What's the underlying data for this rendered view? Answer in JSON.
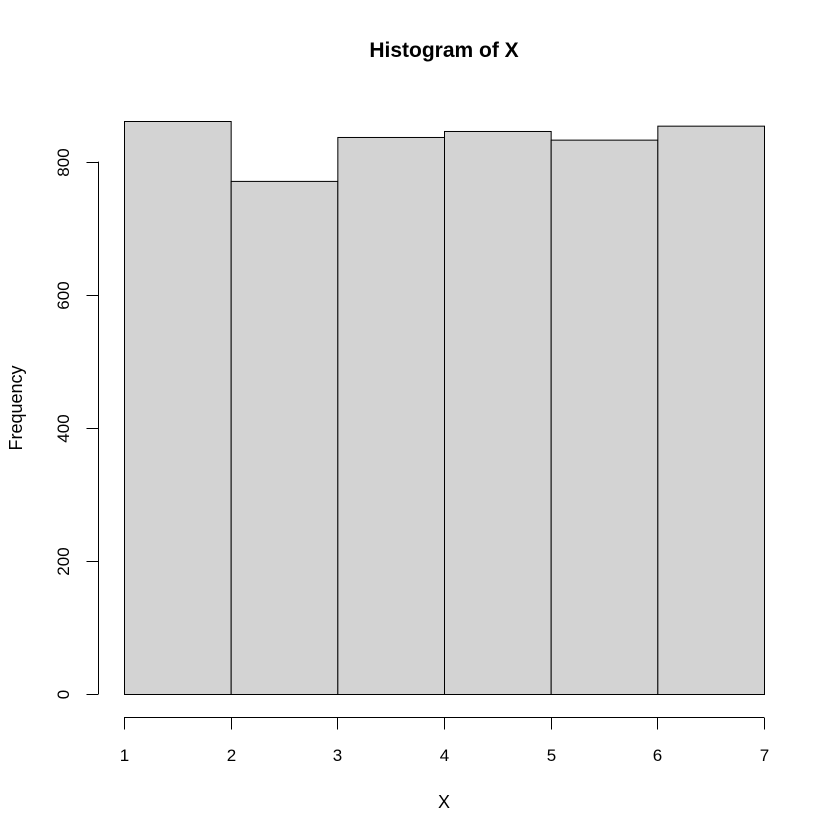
{
  "chart_data": {
    "type": "bar",
    "title": "Histogram of X",
    "xlabel": "X",
    "ylabel": "Frequency",
    "bin_edges": [
      1,
      2,
      3,
      4,
      5,
      6,
      7
    ],
    "values": [
      861,
      771,
      837,
      846,
      833,
      854
    ],
    "xlim": [
      1,
      7
    ],
    "ylim": [
      0,
      861
    ],
    "x_ticks": [
      1,
      2,
      3,
      4,
      5,
      6,
      7
    ],
    "y_ticks": [
      0,
      200,
      400,
      600,
      800
    ],
    "bar_color": "#d3d3d3",
    "grid": false,
    "legend": "none"
  }
}
